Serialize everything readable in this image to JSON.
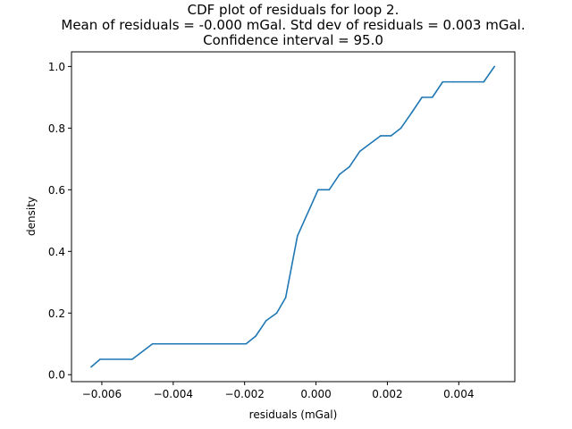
{
  "chart_data": {
    "type": "line",
    "title_lines": [
      "CDF plot of residuals for loop 2.",
      "Mean of residuals = -0.000 mGal. Std dev of residuals = 0.003 mGal.",
      "Confidence interval = 95.0"
    ],
    "xlabel": "residuals (mGal)",
    "ylabel": "density",
    "xlim": [
      -0.00685,
      0.00557
    ],
    "ylim": [
      -0.0225,
      1.0475
    ],
    "xticks": [
      -0.006,
      -0.004,
      -0.002,
      0.0,
      0.002,
      0.004
    ],
    "xtick_labels": [
      "−0.006",
      "−0.004",
      "−0.002",
      "0.000",
      "0.002",
      "0.004"
    ],
    "yticks": [
      0.0,
      0.2,
      0.4,
      0.6,
      0.8,
      1.0
    ],
    "ytick_labels": [
      "0.0",
      "0.2",
      "0.4",
      "0.6",
      "0.8",
      "1.0"
    ],
    "grid": false,
    "series": [
      {
        "color": "#1f77b4",
        "x": [
          -0.0063,
          -0.00605,
          -0.00515,
          -0.00458,
          -0.00196,
          -0.00169,
          -0.0014,
          -0.0011,
          -0.00085,
          -0.00052,
          6e-05,
          0.00037,
          0.00066,
          0.00094,
          0.00123,
          0.00181,
          0.0021,
          0.00238,
          0.00268,
          0.00297,
          0.00326,
          0.00355,
          0.00384,
          0.0047,
          0.005
        ],
        "y": [
          0.025,
          0.05,
          0.05,
          0.1,
          0.1,
          0.125,
          0.175,
          0.2,
          0.25,
          0.45,
          0.6,
          0.6,
          0.65,
          0.675,
          0.725,
          0.775,
          0.775,
          0.8,
          0.85,
          0.9,
          0.9,
          0.95,
          0.95,
          0.95,
          1.0
        ]
      }
    ]
  }
}
